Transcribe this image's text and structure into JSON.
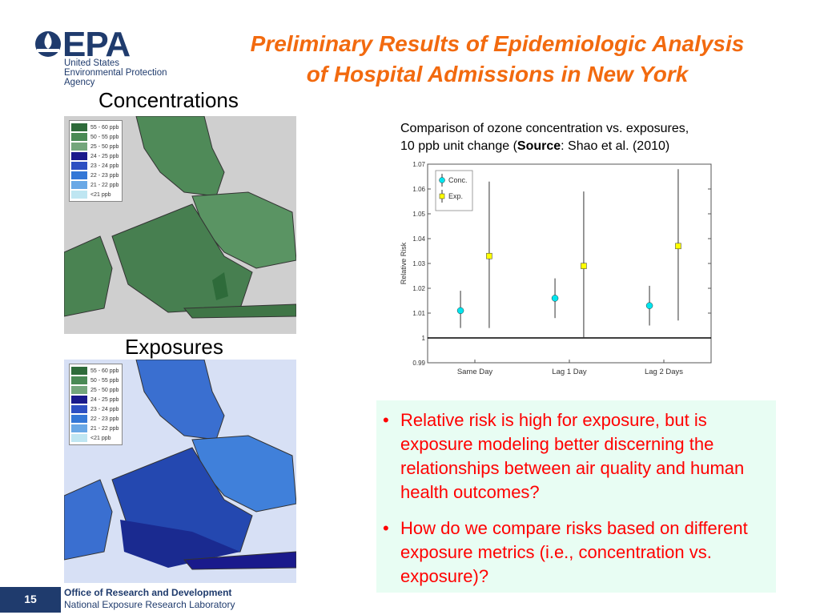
{
  "logo": {
    "word": "EPA",
    "line1": "United States",
    "line2": "Environmental Protection",
    "line3": "Agency",
    "color": "#1f3b6d"
  },
  "title": {
    "line1": "Preliminary Results of Epidemiologic Analysis",
    "line2": "of Hospital Admissions in New York",
    "color": "#f26a0f"
  },
  "maps": {
    "concentrations_label": "Concentrations",
    "exposures_label": "Exposures",
    "legend": [
      {
        "label": "55 - 60 ppb",
        "color": "#2e6b3a"
      },
      {
        "label": "50 - 55 ppb",
        "color": "#4a8a55"
      },
      {
        "label": "25 - 50 ppb",
        "color": "#74a67c"
      },
      {
        "label": "24 - 25 ppb",
        "color": "#1a1a8c"
      },
      {
        "label": "23 - 24 ppb",
        "color": "#2d4fc2"
      },
      {
        "label": "22 - 23 ppb",
        "color": "#3477d6"
      },
      {
        "label": "21 - 22 ppb",
        "color": "#6aa8e6"
      },
      {
        "label": "<21 ppb",
        "color": "#bfe6f2"
      }
    ]
  },
  "caption": {
    "line1": "Comparison of ozone concentration vs. exposures,",
    "line2_prefix": "10 ppb unit change (",
    "line2_bold": "Source",
    "line2_suffix": ": Shao et al. (2010)"
  },
  "chart_data": {
    "type": "scatter",
    "categories": [
      "Same Day",
      "Lag 1 Day",
      "Lag 2 Days"
    ],
    "ylabel": "Relative Risk",
    "xlabel": "",
    "ylim": [
      0.99,
      1.07
    ],
    "yticks": [
      "0.99",
      "1",
      "1.01",
      "1.02",
      "1.03",
      "1.04",
      "1.05",
      "1.06",
      "1.07"
    ],
    "reference_line": 1,
    "legend_position": "top-left",
    "series": [
      {
        "name": "Conc.",
        "color": "#00e5ee",
        "marker": "circle",
        "values": [
          1.011,
          1.016,
          1.013
        ],
        "lower": [
          1.004,
          1.008,
          1.005
        ],
        "upper": [
          1.019,
          1.024,
          1.021
        ]
      },
      {
        "name": "Exp.",
        "color": "#ffff00",
        "marker": "square",
        "values": [
          1.033,
          1.029,
          1.037
        ],
        "lower": [
          1.004,
          1.0,
          1.007
        ],
        "upper": [
          1.063,
          1.059,
          1.068
        ]
      }
    ]
  },
  "bullets": [
    "Relative risk is high for exposure, but is exposure modeling better discerning the relationships between air quality and human health outcomes?",
    "How do we compare risks based on different exposure metrics (i.e., concentration vs. exposure)?"
  ],
  "bullet_symbol": "•",
  "footer": {
    "page": "15",
    "line1": "Office of Research and Development",
    "line2": "National Exposure Research Laboratory"
  }
}
